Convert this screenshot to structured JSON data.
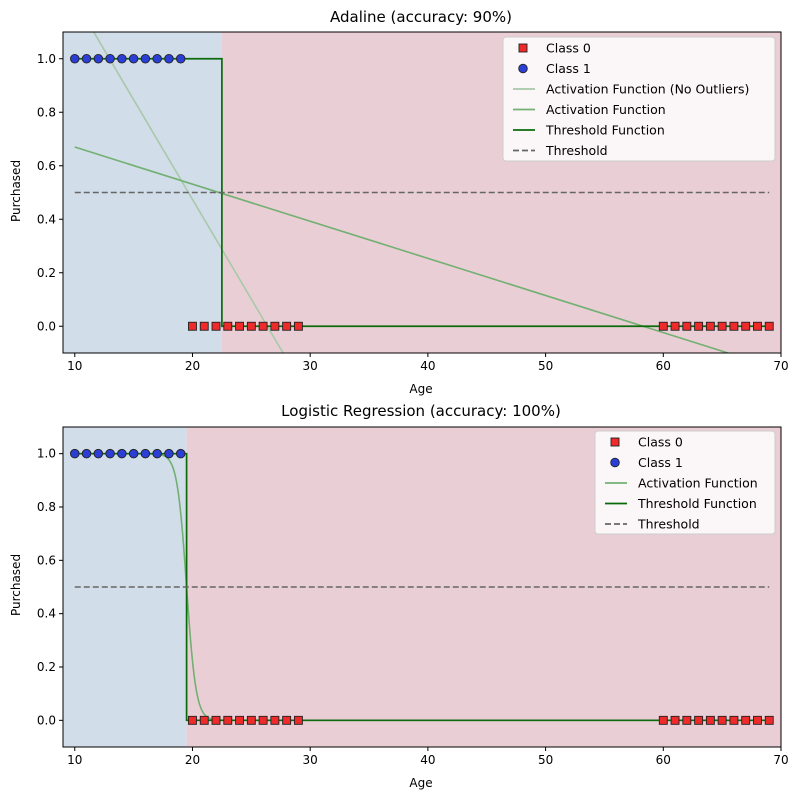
{
  "chart_data": [
    {
      "type": "line",
      "title": "Adaline (accuracy: 90%)",
      "xlabel": "Age",
      "ylabel": "Purchased",
      "xlim": [
        9.0,
        70.0
      ],
      "ylim": [
        -0.1,
        1.1
      ],
      "xticks": [
        10,
        20,
        30,
        40,
        50,
        60,
        70
      ],
      "yticks": [
        0.0,
        0.2,
        0.4,
        0.6,
        0.8,
        1.0
      ],
      "xtick_labels": [
        "10",
        "20",
        "30",
        "40",
        "50",
        "60",
        "70"
      ],
      "ytick_labels": [
        "0.0",
        "0.2",
        "0.4",
        "0.6",
        "0.8",
        "1.0"
      ],
      "decision_boundary": 22.5,
      "region_colors": {
        "class_1": "#d1dde9",
        "class_0": "#eaced5"
      },
      "legend_position": "top-right",
      "grid": false,
      "class_0_points": {
        "name": "Class 0",
        "marker": "square",
        "color": "#ee2a2a",
        "x": [
          20,
          21,
          22,
          23,
          24,
          25,
          26,
          27,
          28,
          29,
          60,
          61,
          62,
          63,
          64,
          65,
          66,
          67,
          68,
          69
        ],
        "y": [
          0,
          0,
          0,
          0,
          0,
          0,
          0,
          0,
          0,
          0,
          0,
          0,
          0,
          0,
          0,
          0,
          0,
          0,
          0,
          0
        ]
      },
      "class_1_points": {
        "name": "Class 1",
        "marker": "circle",
        "color": "#2b3fd6",
        "x": [
          10,
          11,
          12,
          13,
          14,
          15,
          16,
          17,
          18,
          19
        ],
        "y": [
          1,
          1,
          1,
          1,
          1,
          1,
          1,
          1,
          1,
          1
        ]
      },
      "series": [
        {
          "name": "Activation Function (No Outliers)",
          "style": "solid",
          "color": "#a8c9a8",
          "kind": "linear",
          "x": [
            10,
            27.7
          ],
          "y": [
            1.22,
            -0.1
          ]
        },
        {
          "name": "Activation Function",
          "style": "solid",
          "color": "#72b072",
          "kind": "linear",
          "x": [
            10,
            65.5
          ],
          "y": [
            0.67,
            -0.1
          ]
        },
        {
          "name": "Threshold Function",
          "style": "solid",
          "color": "#0b6b0b",
          "kind": "step",
          "x": [
            10,
            22.5,
            22.5,
            69
          ],
          "y": [
            1,
            1,
            0,
            0
          ]
        },
        {
          "name": "Threshold",
          "style": "dashed",
          "color": "#666666",
          "kind": "linear",
          "x": [
            10,
            69
          ],
          "y": [
            0.5,
            0.5
          ]
        }
      ],
      "legend": [
        "Class 0",
        "Class 1",
        "Activation Function (No Outliers)",
        "Activation Function",
        "Threshold Function",
        "Threshold"
      ]
    },
    {
      "type": "line",
      "title": "Logistic Regression (accuracy: 100%)",
      "xlabel": "Age",
      "ylabel": "Purchased",
      "xlim": [
        9.0,
        70.0
      ],
      "ylim": [
        -0.1,
        1.1
      ],
      "xticks": [
        10,
        20,
        30,
        40,
        50,
        60,
        70
      ],
      "yticks": [
        0.0,
        0.2,
        0.4,
        0.6,
        0.8,
        1.0
      ],
      "xtick_labels": [
        "10",
        "20",
        "30",
        "40",
        "50",
        "60",
        "70"
      ],
      "ytick_labels": [
        "0.0",
        "0.2",
        "0.4",
        "0.6",
        "0.8",
        "1.0"
      ],
      "decision_boundary": 19.5,
      "region_colors": {
        "class_1": "#d1dde9",
        "class_0": "#eaced5"
      },
      "legend_position": "top-right",
      "grid": false,
      "class_0_points": {
        "name": "Class 0",
        "marker": "square",
        "color": "#ee2a2a",
        "x": [
          20,
          21,
          22,
          23,
          24,
          25,
          26,
          27,
          28,
          29,
          60,
          61,
          62,
          63,
          64,
          65,
          66,
          67,
          68,
          69
        ],
        "y": [
          0,
          0,
          0,
          0,
          0,
          0,
          0,
          0,
          0,
          0,
          0,
          0,
          0,
          0,
          0,
          0,
          0,
          0,
          0,
          0
        ]
      },
      "class_1_points": {
        "name": "Class 1",
        "marker": "circle",
        "color": "#2b3fd6",
        "x": [
          10,
          11,
          12,
          13,
          14,
          15,
          16,
          17,
          18,
          19
        ],
        "y": [
          1,
          1,
          1,
          1,
          1,
          1,
          1,
          1,
          1,
          1
        ]
      },
      "series": [
        {
          "name": "Activation Function",
          "style": "solid",
          "color": "#72b072",
          "kind": "sigmoid",
          "center": 19.5,
          "steepness": 2.5,
          "x": [
            10,
            69
          ]
        },
        {
          "name": "Threshold Function",
          "style": "solid",
          "color": "#0b6b0b",
          "kind": "step",
          "x": [
            10,
            19.5,
            19.5,
            69
          ],
          "y": [
            1,
            1,
            0,
            0
          ]
        },
        {
          "name": "Threshold",
          "style": "dashed",
          "color": "#666666",
          "kind": "linear",
          "x": [
            10,
            69
          ],
          "y": [
            0.5,
            0.5
          ]
        }
      ],
      "legend": [
        "Class 0",
        "Class 1",
        "Activation Function",
        "Threshold Function",
        "Threshold"
      ]
    }
  ]
}
